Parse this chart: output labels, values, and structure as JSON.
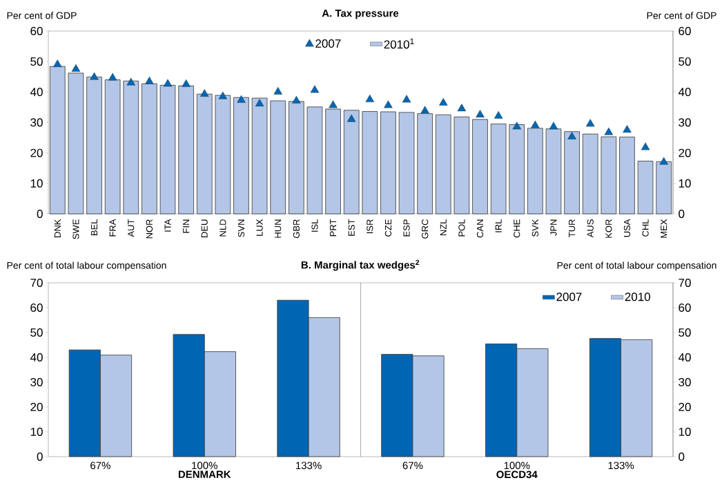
{
  "chart_data": [
    {
      "type": "bar",
      "title": "**A. Tax pressure**",
      "ylabel": "Per cent of GDP",
      "y2label": "Per cent of GDP",
      "categories": [
        "DNK",
        "SWE",
        "BEL",
        "FRA",
        "AUT",
        "NOR",
        "ITA",
        "FIN",
        "DEU",
        "NLD",
        "SVN",
        "LUX",
        "HUN",
        "GBR",
        "ISL",
        "PRT",
        "EST",
        "ISR",
        "CZE",
        "ESP",
        "GRC",
        "NZL",
        "POL",
        "CAN",
        "IRL",
        "CHE",
        "SVK",
        "JPN",
        "TUR",
        "AUS",
        "KOR",
        "USA",
        "CHL",
        "MEX"
      ],
      "series": [
        {
          "name": "2007",
          "type": "scatter",
          "marker": "triangle",
          "color": "#0066b3",
          "values": [
            49,
            47.5,
            44.8,
            44.6,
            43,
            43.4,
            42.6,
            42.5,
            39.3,
            38.5,
            37.3,
            36.1,
            40,
            37.1,
            40.6,
            35.6,
            31,
            37.5,
            35.6,
            37.4,
            33.8,
            36.4,
            34.5,
            32.5,
            32.1,
            28.6,
            29,
            28.6,
            25.3,
            29.5,
            26.7,
            27.5,
            21.8,
            17
          ]
        },
        {
          "name": "2010$^{1}$",
          "type": "bar",
          "color": "#b3c6e7",
          "values": [
            48.4,
            46.2,
            44.9,
            44,
            43.6,
            42.7,
            42.2,
            42,
            39.3,
            38.9,
            38.2,
            38,
            37.1,
            36.9,
            35.1,
            34.4,
            34,
            33.6,
            33.5,
            33.3,
            32.9,
            32.5,
            31.8,
            31,
            29.5,
            29.3,
            28.1,
            27.9,
            27,
            26.2,
            25.3,
            25.2,
            17.3,
            17.1
          ]
        }
      ],
      "ylim": [
        0,
        60
      ],
      "yticks": [
        0,
        10,
        20,
        30,
        40,
        50,
        60
      ],
      "y2lim": [
        0,
        60
      ],
      "y2ticks": [
        0,
        10,
        20,
        30,
        40,
        50,
        60
      ],
      "legend": "top"
    },
    {
      "type": "bar",
      "title": "**B. Marginal tax wedges$^{2}$**",
      "ylabel": "Per cent of total labour compensation",
      "y2label": "Per cent of total labour compensation",
      "categories": [
        "67%",
        "100%",
        "133%",
        "67%",
        "100%",
        "133%"
      ],
      "series": [
        {
          "name": "2007",
          "color": "#0066b3",
          "values": [
            43,
            49.2,
            63,
            41.2,
            45.4,
            47.6
          ]
        },
        {
          "name": "2010",
          "color": "#b3c6e7",
          "values": [
            40.9,
            42.3,
            56,
            40.6,
            43.5,
            47.1
          ]
        }
      ],
      "ylim": [
        0,
        70
      ],
      "yticks": [
        0,
        10,
        20,
        30,
        40,
        50,
        60,
        70
      ],
      "y2lim": [
        0,
        70
      ],
      "y2ticks": [
        0,
        10,
        20,
        30,
        40,
        50,
        60,
        70
      ],
      "legend": "top right",
      "annotations": [
        "**DENMARK**",
        "**OECD34**"
      ]
    }
  ]
}
